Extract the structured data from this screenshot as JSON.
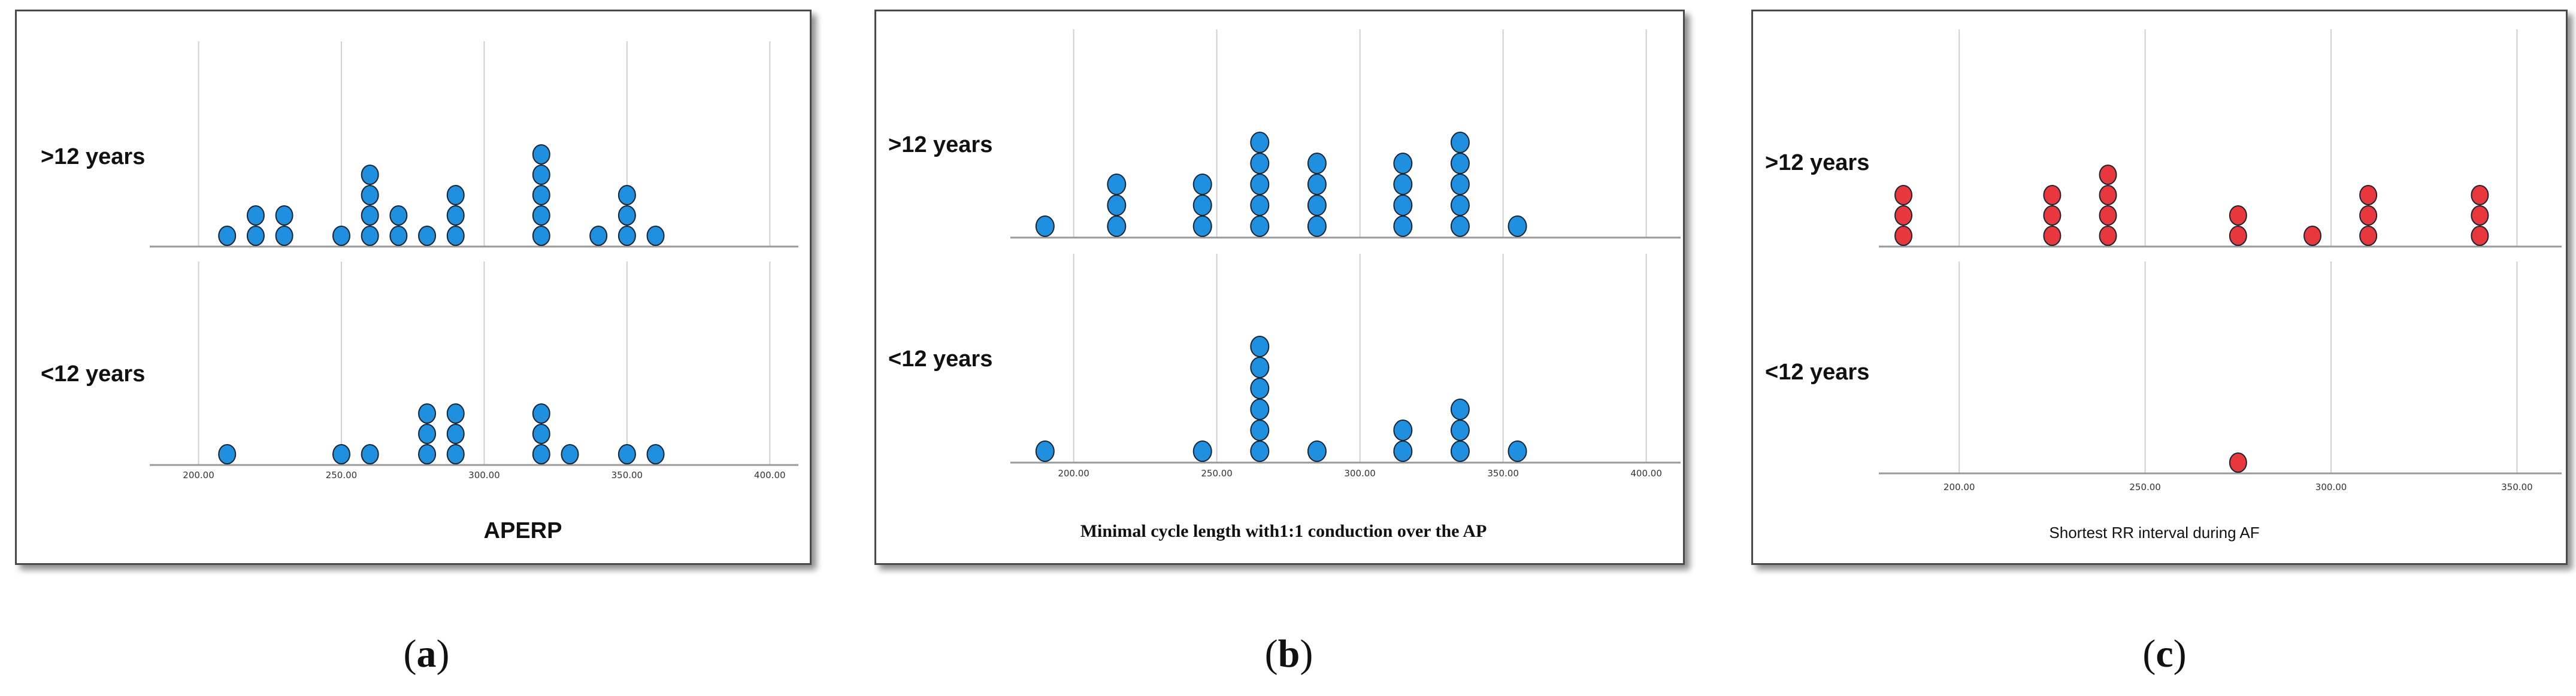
{
  "colors": {
    "blue": "#1f8fe0",
    "red": "#e8383d",
    "outline": "#1c2430",
    "grid": "#cfcfcf",
    "axis": "#9a9a9a"
  },
  "captions": [
    {
      "open": "(",
      "letter": "a",
      "close": ")"
    },
    {
      "open": "(",
      "letter": "b",
      "close": ")"
    },
    {
      "open": "(",
      "letter": "c",
      "close": ")"
    }
  ],
  "chart_data": [
    {
      "type": "scatter",
      "title": "",
      "xlabel": "APERP",
      "xlim": [
        185,
        410
      ],
      "ticks": [
        200,
        250,
        300,
        350,
        400
      ],
      "tick_labels": [
        "200.00",
        "250.00",
        "300.00",
        "350.00",
        "400.00"
      ],
      "color": "#1f8fe0",
      "groups": [
        {
          "label": ">12 years",
          "points": [
            [
              210,
              1
            ],
            [
              220,
              2
            ],
            [
              230,
              2
            ],
            [
              250,
              1
            ],
            [
              260,
              4
            ],
            [
              270,
              2
            ],
            [
              280,
              1
            ],
            [
              290,
              3
            ],
            [
              320,
              5
            ],
            [
              340,
              1
            ],
            [
              350,
              3
            ],
            [
              360,
              1
            ]
          ]
        },
        {
          "label": "<12 years",
          "points": [
            [
              210,
              1
            ],
            [
              250,
              1
            ],
            [
              260,
              1
            ],
            [
              280,
              3
            ],
            [
              290,
              3
            ],
            [
              320,
              3
            ],
            [
              330,
              1
            ],
            [
              350,
              1
            ],
            [
              360,
              1
            ]
          ]
        }
      ]
    },
    {
      "type": "scatter",
      "title": "",
      "xlabel": "Minimal cycle length with1:1 conduction over the AP",
      "xlim": [
        180,
        412
      ],
      "ticks": [
        200,
        250,
        300,
        350,
        400
      ],
      "tick_labels": [
        "200.00",
        "250.00",
        "300.00",
        "350.00",
        "400.00"
      ],
      "color": "#1f8fe0",
      "groups": [
        {
          "label": ">12 years",
          "points": [
            [
              190,
              1
            ],
            [
              215,
              3
            ],
            [
              245,
              3
            ],
            [
              265,
              5
            ],
            [
              285,
              4
            ],
            [
              315,
              4
            ],
            [
              335,
              5
            ],
            [
              355,
              1
            ]
          ]
        },
        {
          "label": "<12 years",
          "points": [
            [
              190,
              1
            ],
            [
              245,
              1
            ],
            [
              265,
              6
            ],
            [
              285,
              1
            ],
            [
              315,
              2
            ],
            [
              335,
              3
            ],
            [
              355,
              1
            ]
          ]
        }
      ]
    },
    {
      "type": "scatter",
      "title": "",
      "xlabel": "Shortest RR interval during AF",
      "xlim": [
        180,
        362
      ],
      "ticks": [
        200,
        250,
        300,
        350
      ],
      "tick_labels": [
        "200.00",
        "250.00",
        "300.00",
        "350.00"
      ],
      "color": "#e8383d",
      "groups": [
        {
          "label": ">12 years",
          "points": [
            [
              185,
              3
            ],
            [
              225,
              3
            ],
            [
              240,
              4
            ],
            [
              275,
              2
            ],
            [
              295,
              1
            ],
            [
              310,
              3
            ],
            [
              340,
              3
            ]
          ]
        },
        {
          "label": "<12 years",
          "points": [
            [
              275,
              1
            ]
          ]
        }
      ]
    }
  ]
}
